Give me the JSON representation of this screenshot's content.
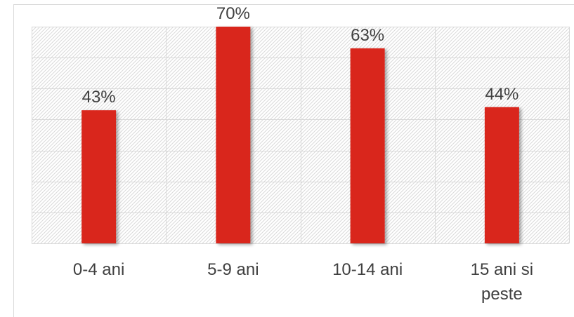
{
  "chart_data": {
    "type": "bar",
    "title": "",
    "xlabel": "",
    "ylabel": "",
    "categories": [
      [
        "0-4 ani"
      ],
      [
        "5-9 ani"
      ],
      [
        "10-14 ani"
      ],
      [
        "15 ani si",
        "peste"
      ]
    ],
    "values": [
      43,
      70,
      63,
      44
    ],
    "data_labels": [
      "43%",
      "70%",
      "63%",
      "44%"
    ],
    "ylim": [
      0,
      70
    ],
    "grid": true,
    "legend": "none",
    "colors": {
      "bar": "#D9261C",
      "text": "#404040",
      "grid": "#D9D9D9",
      "hatch": "#DADADA",
      "border": "#D9D9D9"
    }
  }
}
